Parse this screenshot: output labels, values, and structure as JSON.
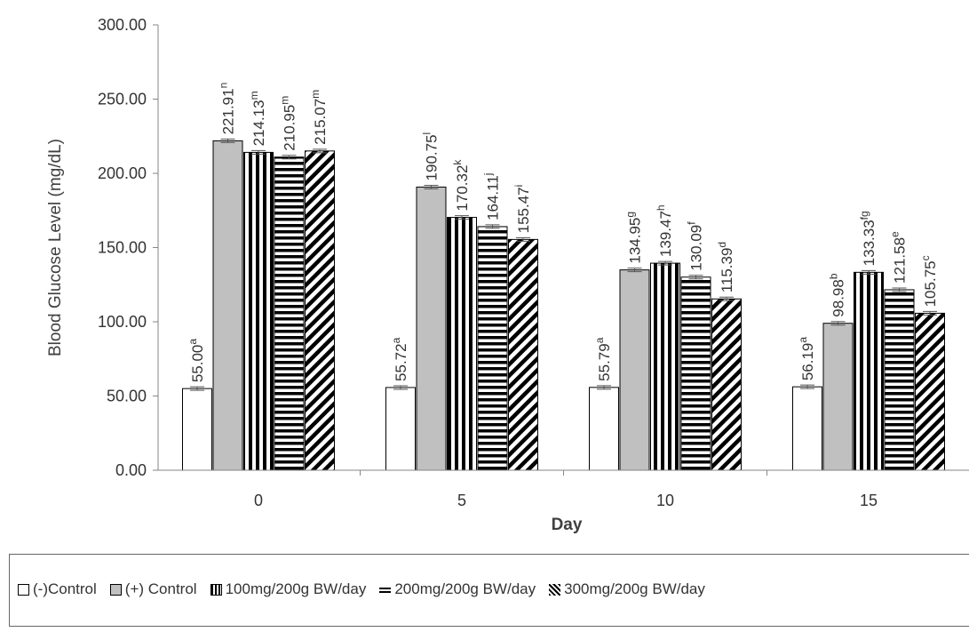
{
  "chart_data": {
    "type": "bar",
    "title": "",
    "xlabel": "Day",
    "ylabel": "Blood Glucose Level (mg/dL)",
    "ylim": [
      0,
      300
    ],
    "yticks": [
      "0.00",
      "50.00",
      "100.00",
      "150.00",
      "200.00",
      "250.00",
      "300.00"
    ],
    "grid": false,
    "legend_placement": "bottom",
    "categories": [
      "0",
      "5",
      "10",
      "15"
    ],
    "series": [
      {
        "name": "(-)Control",
        "pattern": "white",
        "values": [
          55.0,
          55.72,
          55.79,
          56.19
        ],
        "labels": [
          "55.00",
          "55.72",
          "55.79",
          "56.19"
        ],
        "superscripts": [
          "a",
          "a",
          "a",
          "a"
        ]
      },
      {
        "name": "(+) Control",
        "pattern": "gray",
        "values": [
          221.91,
          190.75,
          134.95,
          98.98
        ],
        "labels": [
          "221.91",
          "190.75",
          "134.95",
          "98.98"
        ],
        "superscripts": [
          "n",
          "l",
          "g",
          "b"
        ]
      },
      {
        "name": "100mg/200g BW/day",
        "pattern": "vertical-stripes",
        "values": [
          214.13,
          170.32,
          139.47,
          133.33
        ],
        "labels": [
          "214.13",
          "170.32",
          "139.47",
          "133.33"
        ],
        "superscripts": [
          "m",
          "k",
          "h",
          "fg"
        ]
      },
      {
        "name": "200mg/200g BW/day",
        "pattern": "horizontal-stripes",
        "values": [
          210.95,
          164.11,
          130.09,
          121.58
        ],
        "labels": [
          "210.95",
          "164.11",
          "130.09",
          "121.58"
        ],
        "superscripts": [
          "m",
          "j",
          "f",
          "e"
        ]
      },
      {
        "name": "300mg/200g BW/day",
        "pattern": "diagonal-stripes",
        "values": [
          215.07,
          155.47,
          115.39,
          105.75
        ],
        "labels": [
          "215.07",
          "155.47",
          "115.39",
          "105.75"
        ],
        "superscripts": [
          "m",
          "i",
          "d",
          "c"
        ]
      }
    ],
    "colors": {
      "bar_stroke": "#000000",
      "gray_fill": "#c0c0c0",
      "axis": "#868686",
      "text": "#333333"
    }
  }
}
